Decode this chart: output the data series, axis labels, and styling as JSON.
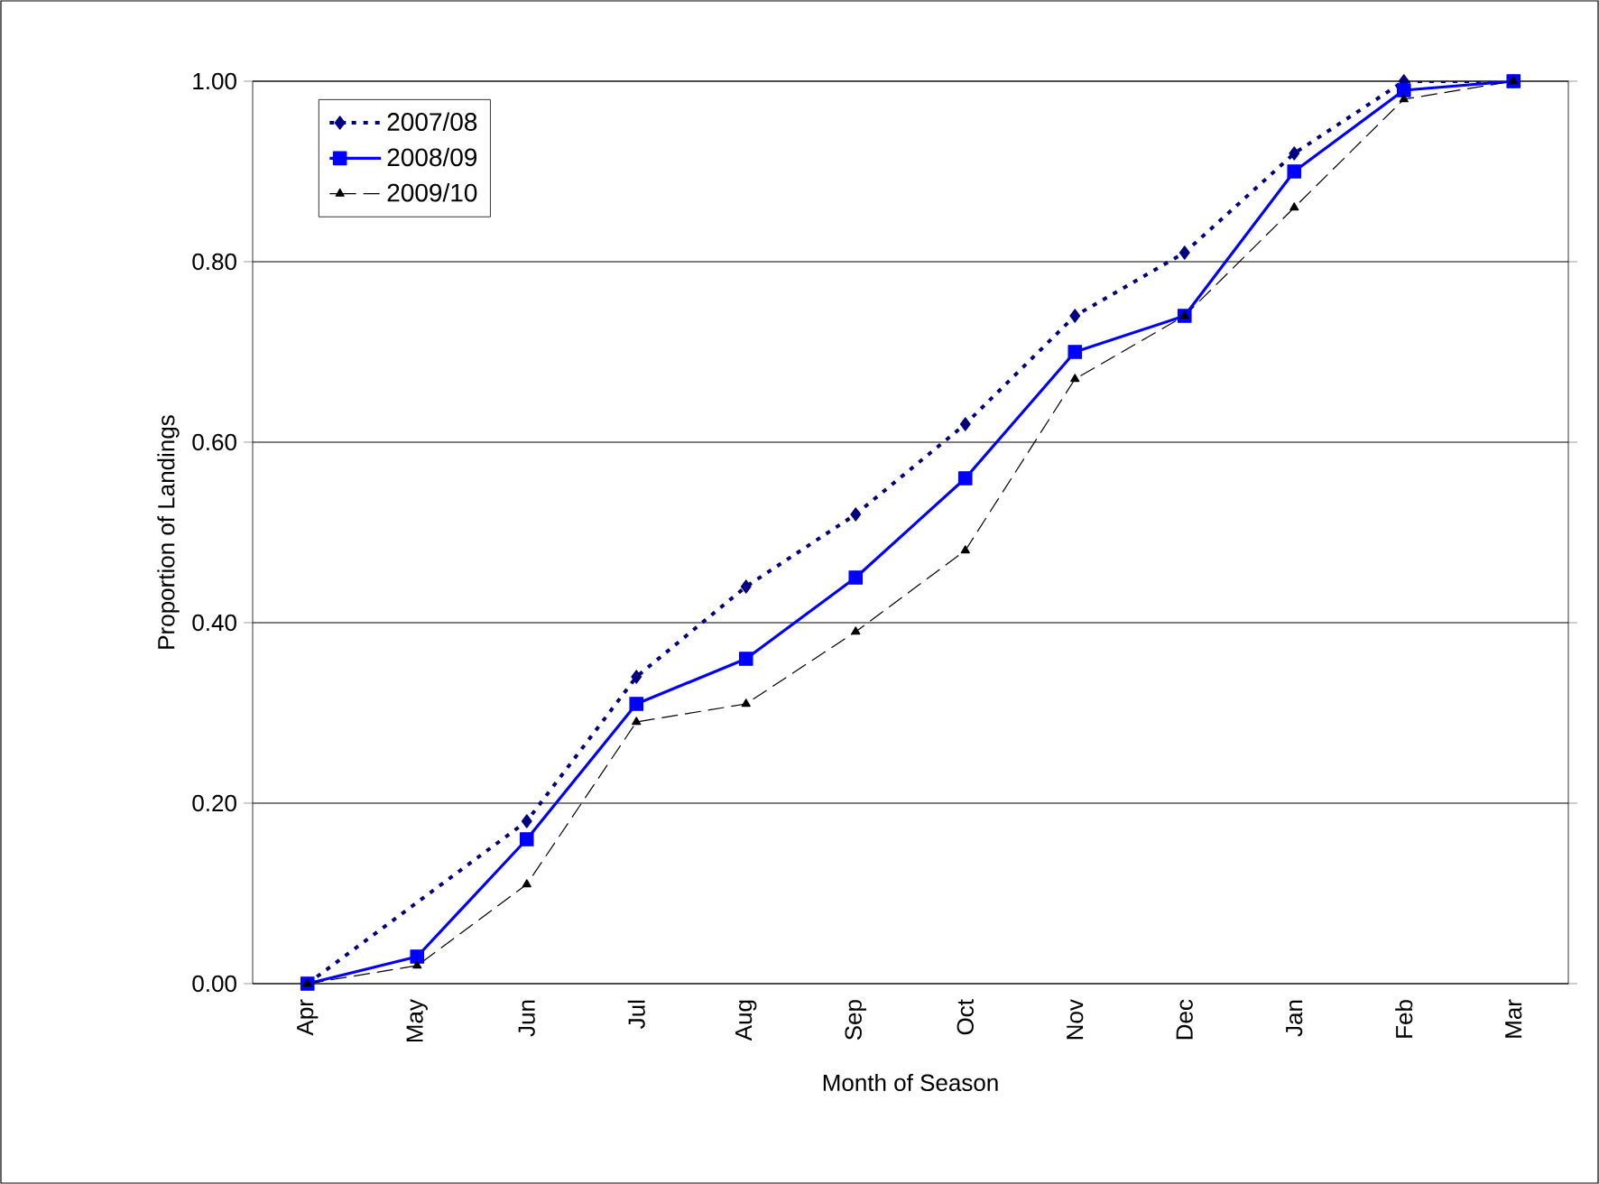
{
  "chart_data": {
    "type": "line",
    "xlabel": "Month of Season",
    "ylabel": "Proportion of Landings",
    "categories": [
      "Apr",
      "May",
      "Jun",
      "Jul",
      "Aug",
      "Sep",
      "Oct",
      "Nov",
      "Dec",
      "Jan",
      "Feb",
      "Mar"
    ],
    "series": [
      {
        "name": "2007/08",
        "color": "#000080",
        "marker": "diamond",
        "line_style": "dotted",
        "values": [
          0,
          null,
          0.18,
          0.34,
          0.44,
          0.52,
          0.62,
          0.74,
          0.81,
          0.92,
          1.0,
          1.0
        ]
      },
      {
        "name": "2008/09",
        "color": "#0000ff",
        "marker": "square",
        "line_style": "solid",
        "values": [
          0,
          0.03,
          0.16,
          0.31,
          0.36,
          0.45,
          0.56,
          0.7,
          0.74,
          0.9,
          0.99,
          1.0
        ]
      },
      {
        "name": "2009/10",
        "color": "#000000",
        "marker": "triangle",
        "line_style": "dashed",
        "values": [
          0,
          0.02,
          0.11,
          0.29,
          0.31,
          0.39,
          0.48,
          0.67,
          0.74,
          0.86,
          0.98,
          1.0
        ]
      }
    ],
    "ylim": [
      0,
      1
    ],
    "yticks": [
      {
        "value": 0,
        "label": "0.00"
      },
      {
        "value": 0.2,
        "label": "0.20"
      },
      {
        "value": 0.4,
        "label": "0.40"
      },
      {
        "value": 0.6,
        "label": "0.60"
      },
      {
        "value": 0.8,
        "label": "0.80"
      },
      {
        "value": 1.0,
        "label": "1.00"
      }
    ],
    "grid": "y",
    "legend": "top left"
  }
}
